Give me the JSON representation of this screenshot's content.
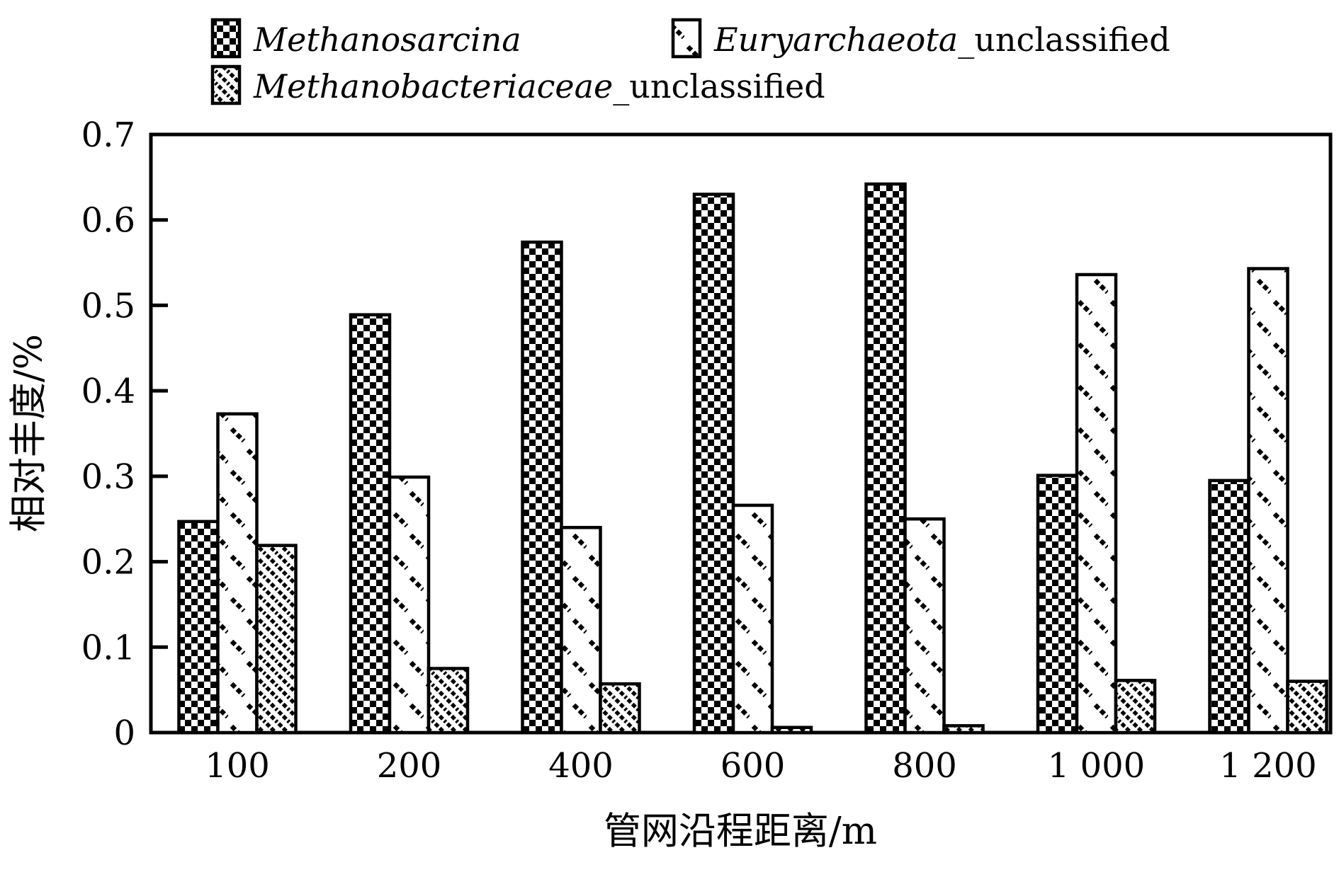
{
  "figure": {
    "x_axis_title": "管网沿程距离/m",
    "y_axis_title": "相对丰度/%"
  },
  "legend": [
    {
      "name_italic": "Methanosarcina",
      "name_rest": "",
      "pattern": "checker"
    },
    {
      "name_italic": "Euryarchaeota",
      "name_rest": "_unclassified",
      "pattern": "sparse-dash"
    },
    {
      "name_italic": "Methanobacteriaceae",
      "name_rest": "_unclassified",
      "pattern": "diagonal-hatch"
    }
  ],
  "chart_data": {
    "type": "bar",
    "categories": [
      "100",
      "200",
      "400",
      "600",
      "800",
      "1 000",
      "1 200"
    ],
    "series": [
      {
        "name": "Methanosarcina",
        "pattern": "checker",
        "values": [
          0.247,
          0.489,
          0.574,
          0.63,
          0.642,
          0.301,
          0.295
        ]
      },
      {
        "name": "Euryarchaeota_unclassified",
        "pattern": "sparse-dash",
        "values": [
          0.373,
          0.299,
          0.24,
          0.266,
          0.25,
          0.536,
          0.543
        ]
      },
      {
        "name": "Methanobacteriaceae_unclassified",
        "pattern": "diagonal-hatch",
        "values": [
          0.219,
          0.075,
          0.057,
          0.006,
          0.008,
          0.061,
          0.06
        ]
      }
    ],
    "title": "",
    "xlabel": "管网沿程距离/m",
    "ylabel": "相对丰度/%",
    "ylim": [
      0,
      0.7
    ],
    "yticks": [
      0,
      0.1,
      0.2,
      0.3,
      0.4,
      0.5,
      0.6,
      0.7
    ],
    "ytick_labels": [
      "0",
      "0.1",
      "0.2",
      "0.3",
      "0.4",
      "0.5",
      "0.6",
      "0.7"
    ],
    "grid": false,
    "legend_position": "top-left",
    "colors": {
      "foreground": "#000000",
      "background": "#ffffff"
    }
  }
}
